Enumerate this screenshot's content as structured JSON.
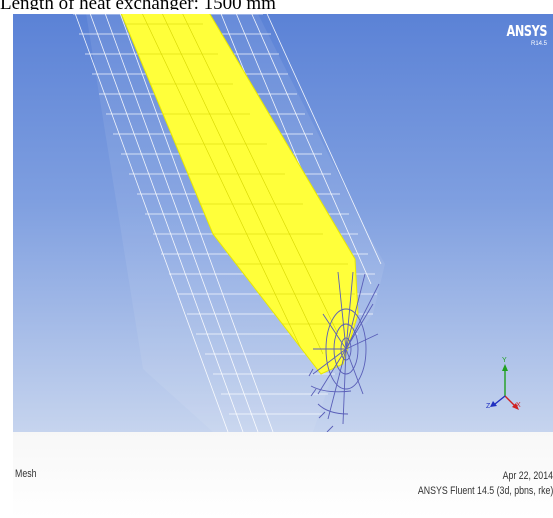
{
  "caption": "Length of heat exchanger: 1500 mm",
  "logo": {
    "text": "ANSYS",
    "subtext": "R14.5"
  },
  "footer": {
    "view_label": "Mesh",
    "date": "Apr 22, 2014",
    "solver_info": "ANSYS Fluent 14.5 (3d, pbns, rke)"
  },
  "axes": {
    "x": "X",
    "y": "Y",
    "z": "Z"
  },
  "colors": {
    "background_top": "#5b82d6",
    "background_bottom": "#c6d4ee",
    "outer_mesh": "#ffffff",
    "inner_mesh": "#ffff3a",
    "end_cap_mesh": "#5a5fb8",
    "axis_x": "#d02020",
    "axis_y": "#20a020",
    "axis_z": "#2030c0"
  },
  "icons": [
    "mesh-geometry",
    "axis-triad"
  ]
}
